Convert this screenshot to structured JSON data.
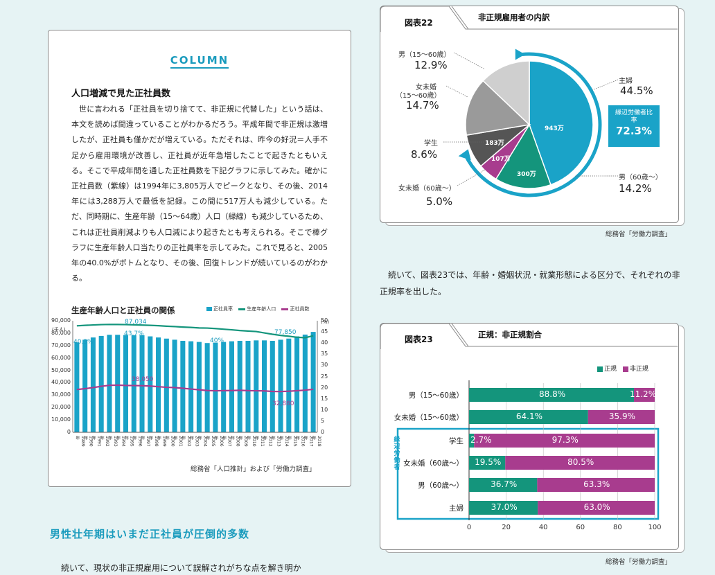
{
  "column": {
    "badge": "COLUMN",
    "heading": "人口増減で見た正社員数",
    "body": "世に言われる「正社員を切り捨てて、非正規に代替した」という話は、本文を読めば間違っていることがわかるだろう。平成年間で非正規は激増したが、正社員も僅かだが増えている。ただそれは、昨今の好況＝人手不足から雇用環境が改善し、正社員が近年急増したことで起きたともいえる。そこで平成年間を通した正社員数を下記グラフに示してみた。確かに正社員数（紫線）は1994年に3,805万人でピークとなり、その後、2014年には3,288万人で最低を記録。この間に517万人も減少している。ただ、同時期に、生産年齢（15〜64歳）人口（緑線）も減少しているため、これは正社員削減よりも人口減により起きたとも考えられる。そこで棒グラフに生産年齢人口当たりの正社員率を示してみた。これで見ると、2005年の40.0%がボトムとなり、その後、回復トレンドが続いているのがわかる。"
  },
  "chart1": {
    "title": "生産年齢人口と正社員の関係",
    "legend": [
      "正社員率",
      "生産年齢人口",
      "正社員数"
    ],
    "left_unit": "(千人)",
    "right_unit": "(%)",
    "left_ticks": [
      "90,000",
      "80,000",
      "70,000",
      "60,000",
      "50,000",
      "40,000",
      "30,000",
      "20,000",
      "10,000",
      "0"
    ],
    "right_ticks": [
      "50",
      "45",
      "40",
      "35",
      "30",
      "25",
      "20",
      "15",
      "10",
      "5",
      "0"
    ],
    "annotations": {
      "pop_peak": "87,034",
      "pop_low": "77,850",
      "rate_start": "40.3%",
      "rate_peak": "43.7%",
      "rate_low": "40%",
      "emp_peak": "38,050",
      "emp_low": "32,880"
    },
    "source": "総務省「人口推計」および「労働力調査」"
  },
  "chart_data": [
    {
      "type": "bar",
      "title": "生産年齢人口と正社員の関係",
      "categories": [
        "1989年",
        "1990年",
        "1991年",
        "1992年",
        "1993年",
        "1994年",
        "1995年",
        "1996年",
        "1997年",
        "1998年",
        "1999年",
        "2000年",
        "2001年",
        "2002年",
        "2003年",
        "2004年",
        "2005年",
        "2006年",
        "2007年",
        "2008年",
        "2009年",
        "2010年",
        "2011年",
        "2012年",
        "2013年",
        "2014年",
        "2015年",
        "2016年",
        "2017年",
        "2018年"
      ],
      "ylim_left": [
        0,
        90000
      ],
      "ylim_right": [
        0,
        50
      ],
      "series": [
        {
          "name": "正社員率",
          "axis": "right",
          "kind": "bar",
          "color": "#1aa3c8",
          "values": [
            40.3,
            41.5,
            42.5,
            43.2,
            43.7,
            43.7,
            43.6,
            43.5,
            43.5,
            43,
            42.5,
            42,
            41.5,
            41,
            40.8,
            40.5,
            40,
            40.2,
            40.5,
            40.8,
            41,
            41,
            41.2,
            41.2,
            41,
            41.5,
            42,
            43,
            43.8,
            45
          ]
        },
        {
          "name": "生産年齢人口",
          "axis": "left",
          "kind": "line",
          "color": "#14957c",
          "values": [
            85900,
            86300,
            86600,
            86900,
            87034,
            87000,
            86900,
            86700,
            86500,
            86300,
            86000,
            85600,
            85300,
            84900,
            84600,
            84200,
            84100,
            83700,
            83200,
            82700,
            82100,
            81700,
            81300,
            80200,
            79100,
            78200,
            77500,
            76700,
            76300,
            77850
          ]
        },
        {
          "name": "正社員数",
          "axis": "left",
          "kind": "line",
          "color": "#a83c8e",
          "values": [
            34500,
            35200,
            36100,
            37100,
            37900,
            38050,
            37800,
            37700,
            37600,
            37300,
            36800,
            36300,
            36100,
            35500,
            34900,
            34300,
            33700,
            33500,
            33600,
            33700,
            33900,
            33600,
            33500,
            33400,
            32940,
            32880,
            33170,
            33540,
            34000,
            34700
          ]
        }
      ]
    },
    {
      "type": "pie",
      "title": "非正規雇用者の内訳",
      "categories": [
        "主婦",
        "男(60歳〜)",
        "女未婚(60歳〜)",
        "学生",
        "女未婚(15〜60歳)",
        "男(15〜60歳)"
      ],
      "values": [
        44.5,
        14.2,
        5.0,
        8.6,
        14.7,
        12.9
      ],
      "colors": [
        "#1aa3c8",
        "#14957c",
        "#a83c8e",
        "#555555",
        "#9a9a9a",
        "#cfcfcf"
      ]
    },
    {
      "type": "bar",
      "title": "正規・非正規割合",
      "categories": [
        "男(15〜60歳)",
        "女未婚(15〜60歳)",
        "学生",
        "女未婚(60歳〜)",
        "男(60歳〜)",
        "主婦"
      ],
      "series": [
        {
          "name": "正規",
          "values": [
            88.8,
            64.1,
            2.7,
            19.5,
            36.7,
            37.0
          ]
        },
        {
          "name": "非正規",
          "values": [
            11.2,
            35.9,
            97.3,
            80.5,
            63.3,
            63.0
          ]
        }
      ],
      "xlim": [
        0,
        100
      ]
    }
  ],
  "section_heading": "男性壮年期はいまだ正社員が圧倒的多数",
  "body_tail": "続いて、現状の非正規雇用について誤解されがちな点を解き明か",
  "fig22": {
    "tab": "図表22",
    "title": "非正規雇用者の内訳",
    "labels": [
      {
        "name": "主婦",
        "value": "44.5%"
      },
      {
        "name": "男（60歳〜）",
        "value": "14.2%"
      },
      {
        "name": "女未婚（60歳〜）",
        "value": "5.0%"
      },
      {
        "name": "学生",
        "value": "8.6%"
      },
      {
        "name": "女未婚（15〜60歳）",
        "value": "14.7%"
      },
      {
        "name": "男（15〜60歳）",
        "value": "12.9%"
      }
    ],
    "slice_labels": {
      "main": "943万",
      "older_men": "300万",
      "older_women": "107万",
      "student": "183万"
    },
    "marginal": {
      "label": "縁辺労働者比率",
      "value": "72.3%"
    },
    "source": "総務省「労働力調査」"
  },
  "mid_text": "続いて、図表23では、年齢・婚姻状況・就業形態による区分で、それぞれの非正規率を出した。",
  "fig23": {
    "tab": "図表23",
    "title": "正規：非正規割合",
    "legend": [
      "正規",
      "非正規"
    ],
    "rows": [
      {
        "label": "男（15〜60歳）",
        "a": "88.8%",
        "b": "11.2%"
      },
      {
        "label": "女未婚（15〜60歳）",
        "a": "64.1%",
        "b": "35.9%"
      },
      {
        "label": "学生",
        "a": "2.7%",
        "b": "97.3%"
      },
      {
        "label": "女未婚（60歳〜）",
        "a": "19.5%",
        "b": "80.5%"
      },
      {
        "label": "男（60歳〜）",
        "a": "36.7%",
        "b": "63.3%"
      },
      {
        "label": "主婦",
        "a": "37.0%",
        "b": "63.0%"
      }
    ],
    "xticks": [
      "0",
      "20",
      "40",
      "60",
      "80",
      "100"
    ],
    "group_label": "縁辺労働者",
    "source": "総務省「労働力調査」"
  },
  "colors": {
    "accent": "#1aa3c8",
    "green": "#14957c",
    "purple": "#a83c8e",
    "bg": "#e6f3f4"
  }
}
